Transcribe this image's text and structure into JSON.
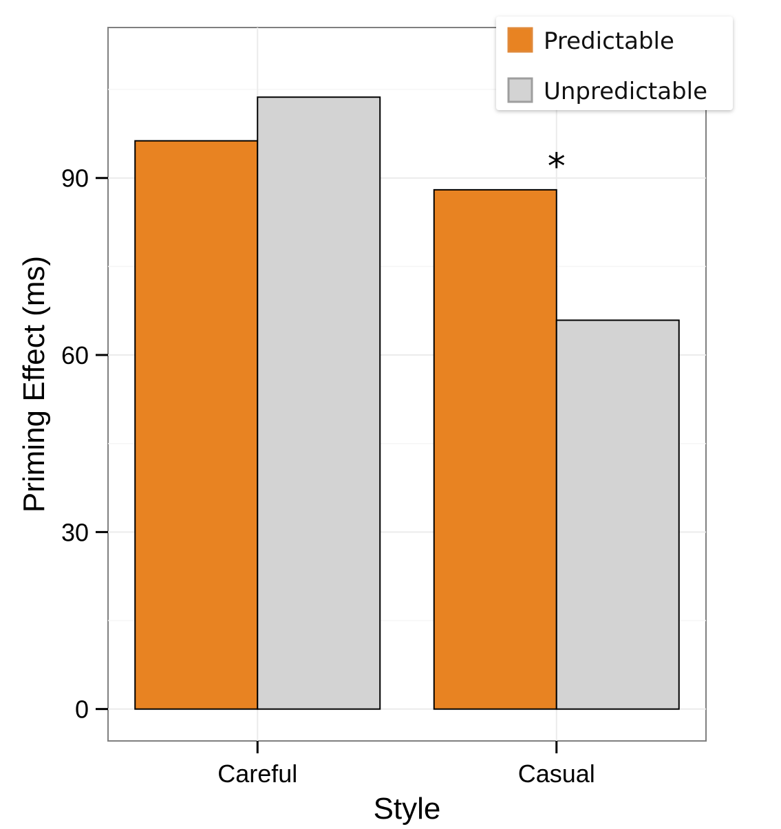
{
  "chart_data": {
    "type": "bar",
    "xlabel": "Style",
    "ylabel": "Priming Effect (ms)",
    "categories": [
      "Careful",
      "Casual"
    ],
    "series": [
      {
        "name": "Predictable",
        "values": [
          96.3,
          88.0
        ],
        "color": "#E88322"
      },
      {
        "name": "Unpredictable",
        "values": [
          103.7,
          65.9
        ],
        "color": "#D3D3D3"
      }
    ],
    "ylim": [
      -5.4,
      115.5
    ],
    "yticks": [
      0,
      30,
      60,
      90
    ],
    "ytick_labels": [
      "0",
      "30",
      "60",
      "90"
    ],
    "grid": true,
    "legend_position": "top-right",
    "annotations": [
      {
        "text": "*",
        "category": "Casual",
        "y": 92.5
      }
    ]
  }
}
